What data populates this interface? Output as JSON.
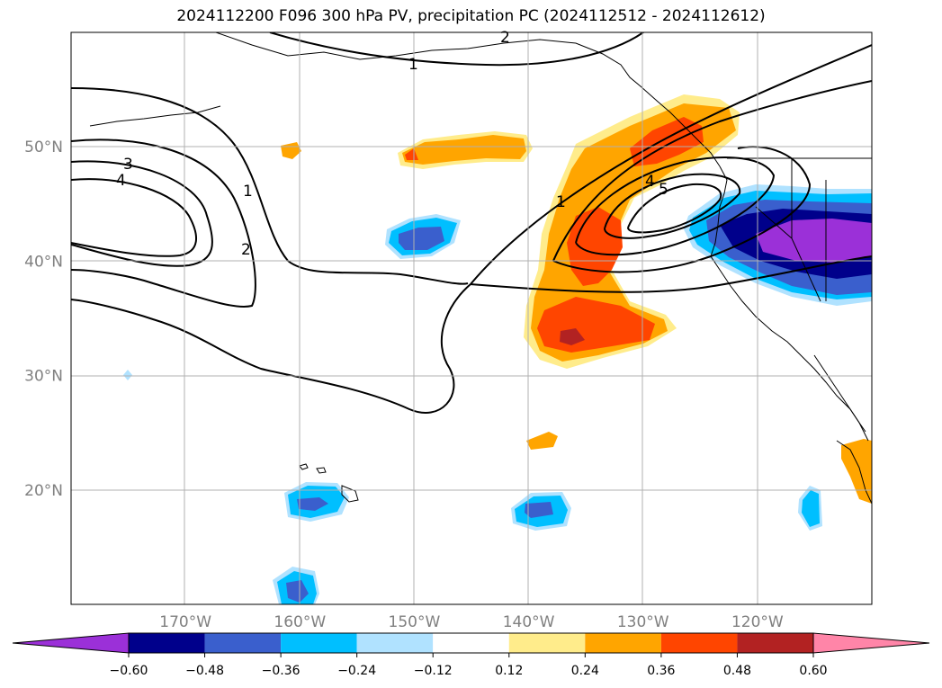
{
  "title": "2024112200 F096 300 hPa PV, precipitation PC (2024112512 - 2024112612)",
  "lat_labels": [
    {
      "lat": 50,
      "text": "50°N"
    },
    {
      "lat": 40,
      "text": "40°N"
    },
    {
      "lat": 30,
      "text": "30°N"
    },
    {
      "lat": 20,
      "text": "20°N"
    }
  ],
  "lon_labels": [
    {
      "lon": -170,
      "text": "170°W"
    },
    {
      "lon": -160,
      "text": "160°W"
    },
    {
      "lon": -150,
      "text": "150°W"
    },
    {
      "lon": -140,
      "text": "140°W"
    },
    {
      "lon": -130,
      "text": "130°W"
    },
    {
      "lon": -120,
      "text": "120°W"
    }
  ],
  "extent": {
    "lon_min": -180,
    "lon_max": -110,
    "lat_min": 10,
    "lat_max": 60
  },
  "pv_contour_labels": [
    "1",
    "2",
    "3",
    "4",
    "5"
  ],
  "colorbar": {
    "ticks": [
      "−0.60",
      "−0.48",
      "−0.36",
      "−0.24",
      "−0.12",
      "0.12",
      "0.24",
      "0.36",
      "0.48",
      "0.60"
    ],
    "colors": [
      "#9b30d8",
      "#00008b",
      "#3a5fcd",
      "#00bfff",
      "#b0e2ff",
      "#ffffff",
      "#ffec8b",
      "#ffa500",
      "#ff4500",
      "#b22222",
      "#ff85a8"
    ]
  },
  "colors": {
    "pos_light": "#ffec8b",
    "pos_mid": "#ffa500",
    "pos_high": "#ff4500",
    "pos_max": "#b22222",
    "neg_light": "#b0e2ff",
    "neg_mid": "#00bfff",
    "neg_high": "#3a5fcd",
    "neg_max": "#00008b",
    "neg_extreme": "#9b30d8",
    "grid": "#b0b0b0",
    "axis_label": "#808080"
  }
}
